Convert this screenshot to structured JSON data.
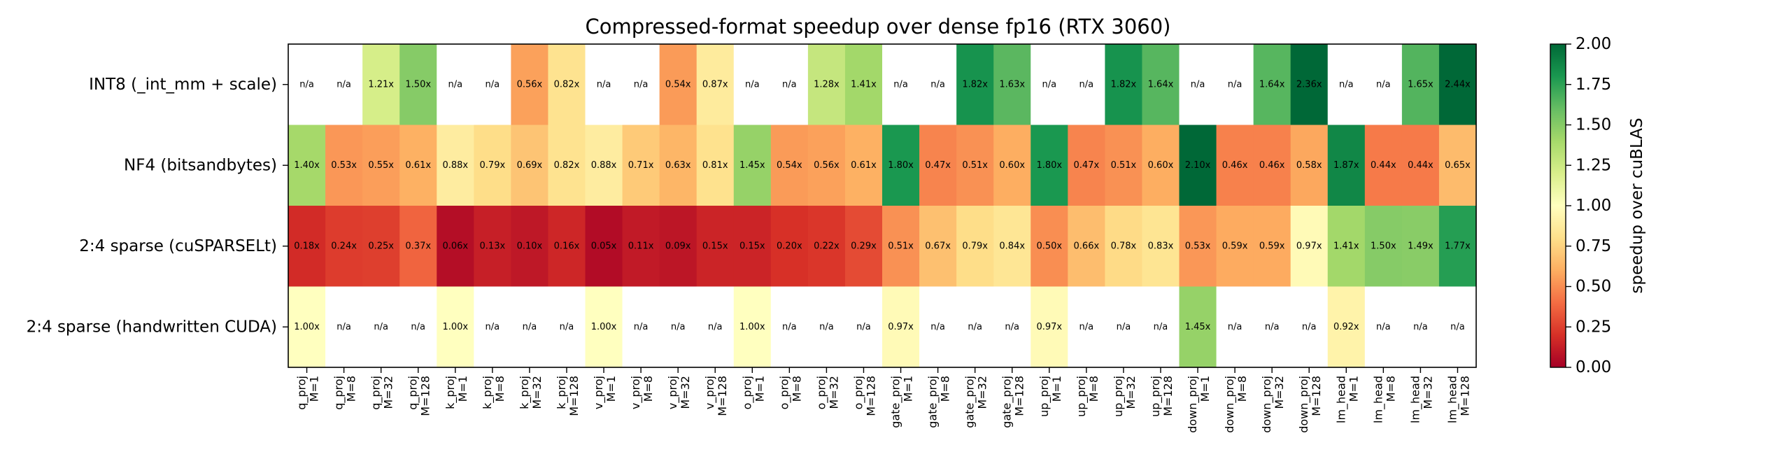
{
  "chart_data": {
    "type": "heatmap",
    "title": "Compressed-format speedup over dense fp16 (RTX 3060)",
    "rows": [
      "INT8 (_int_mm + scale)",
      "NF4 (bitsandbytes)",
      "2:4 sparse (cuSPARSELt)",
      "2:4 sparse (handwritten CUDA)"
    ],
    "columns": [
      [
        "q_proj",
        "M=1"
      ],
      [
        "q_proj",
        "M=8"
      ],
      [
        "q_proj",
        "M=32"
      ],
      [
        "q_proj",
        "M=128"
      ],
      [
        "k_proj",
        "M=1"
      ],
      [
        "k_proj",
        "M=8"
      ],
      [
        "k_proj",
        "M=32"
      ],
      [
        "k_proj",
        "M=128"
      ],
      [
        "v_proj",
        "M=1"
      ],
      [
        "v_proj",
        "M=8"
      ],
      [
        "v_proj",
        "M=32"
      ],
      [
        "v_proj",
        "M=128"
      ],
      [
        "o_proj",
        "M=1"
      ],
      [
        "o_proj",
        "M=8"
      ],
      [
        "o_proj",
        "M=32"
      ],
      [
        "o_proj",
        "M=128"
      ],
      [
        "gate_proj",
        "M=1"
      ],
      [
        "gate_proj",
        "M=8"
      ],
      [
        "gate_proj",
        "M=32"
      ],
      [
        "gate_proj",
        "M=128"
      ],
      [
        "up_proj",
        "M=1"
      ],
      [
        "up_proj",
        "M=8"
      ],
      [
        "up_proj",
        "M=32"
      ],
      [
        "up_proj",
        "M=128"
      ],
      [
        "down_proj",
        "M=1"
      ],
      [
        "down_proj",
        "M=8"
      ],
      [
        "down_proj",
        "M=32"
      ],
      [
        "down_proj",
        "M=128"
      ],
      [
        "lm_head",
        "M=1"
      ],
      [
        "lm_head",
        "M=8"
      ],
      [
        "lm_head",
        "M=32"
      ],
      [
        "lm_head",
        "M=128"
      ]
    ],
    "values": [
      [
        null,
        null,
        1.21,
        1.5,
        null,
        null,
        0.56,
        0.82,
        null,
        null,
        0.54,
        0.87,
        null,
        null,
        1.28,
        1.41,
        null,
        null,
        1.82,
        1.63,
        null,
        null,
        1.82,
        1.64,
        null,
        null,
        1.64,
        2.36,
        null,
        null,
        1.65,
        2.44
      ],
      [
        1.4,
        0.53,
        0.55,
        0.61,
        0.88,
        0.79,
        0.69,
        0.82,
        0.88,
        0.71,
        0.63,
        0.81,
        1.45,
        0.54,
        0.56,
        0.61,
        1.8,
        0.47,
        0.51,
        0.6,
        1.8,
        0.47,
        0.51,
        0.6,
        2.1,
        0.46,
        0.46,
        0.58,
        1.87,
        0.44,
        0.44,
        0.65
      ],
      [
        0.18,
        0.24,
        0.25,
        0.37,
        0.06,
        0.13,
        0.1,
        0.16,
        0.05,
        0.11,
        0.09,
        0.15,
        0.15,
        0.2,
        0.22,
        0.29,
        0.51,
        0.67,
        0.79,
        0.84,
        0.5,
        0.66,
        0.78,
        0.83,
        0.53,
        0.59,
        0.59,
        0.97,
        1.41,
        1.5,
        1.49,
        1.77
      ],
      [
        1.0,
        null,
        null,
        null,
        1.0,
        null,
        null,
        null,
        1.0,
        null,
        null,
        null,
        1.0,
        null,
        null,
        null,
        0.97,
        null,
        null,
        null,
        0.97,
        null,
        null,
        null,
        1.45,
        null,
        null,
        null,
        0.92,
        null,
        null,
        null
      ]
    ],
    "missing_label": "n/a",
    "value_suffix": "x",
    "colormap": "RdYlGn",
    "colorbar": {
      "label": "speedup over cuBLAS",
      "range": [
        0.0,
        2.0
      ],
      "ticks": [
        "0.00",
        "0.25",
        "0.50",
        "0.75",
        "1.00",
        "1.25",
        "1.50",
        "1.75",
        "2.00"
      ]
    }
  }
}
